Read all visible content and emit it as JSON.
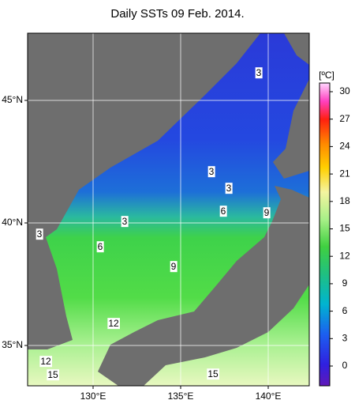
{
  "map": {
    "title": "Daily SSTs 09 Feb. 2014.",
    "lat_labels": [
      {
        "value": 45,
        "label": "45°N"
      },
      {
        "value": 40,
        "label": "40°N"
      },
      {
        "value": 35,
        "label": "35°N"
      }
    ],
    "lon_labels": [
      {
        "value": 130,
        "label": "130°E"
      },
      {
        "value": 135,
        "label": "135°E"
      },
      {
        "value": 140,
        "label": "140°E"
      }
    ],
    "contour_labels": [
      3,
      3,
      3,
      6,
      9,
      3,
      6,
      9,
      12,
      12,
      15,
      15,
      3
    ]
  },
  "colorbar": {
    "unit": "[ºC]",
    "ticks": [
      0,
      3,
      6,
      9,
      12,
      15,
      18,
      21,
      24,
      27,
      30
    ]
  }
}
